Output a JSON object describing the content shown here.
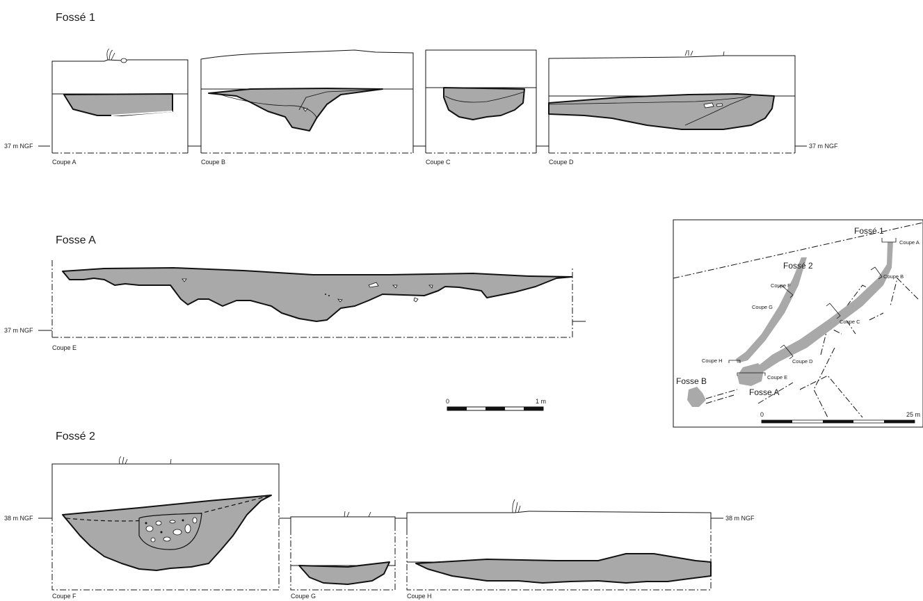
{
  "titles": {
    "fosse1": "Fossé 1",
    "fosseA": "Fosse A",
    "fosse2": "Fossé 2"
  },
  "levels": {
    "ngf37": "37 m NGF",
    "ngf38": "38 m NGF"
  },
  "sections": {
    "a": "Coupe A",
    "b": "Coupe B",
    "c": "Coupe C",
    "d": "Coupe D",
    "e": "Coupe E",
    "f": "Coupe F",
    "g": "Coupe G",
    "h": "Coupe H"
  },
  "scale": {
    "start": "0",
    "end": "1 m"
  },
  "plan": {
    "fosse1": "Fossé 1",
    "fosse2": "Fossé 2",
    "fosseA": "Fosse A",
    "fosseB": "Fosse B",
    "coupes": [
      "Coupe A",
      "Coupe B",
      "Coupe C",
      "Coupe D",
      "Coupe E",
      "Coupe F",
      "Coupe G",
      "Coupe H"
    ],
    "scale_start": "0",
    "scale_end": "25 m"
  }
}
